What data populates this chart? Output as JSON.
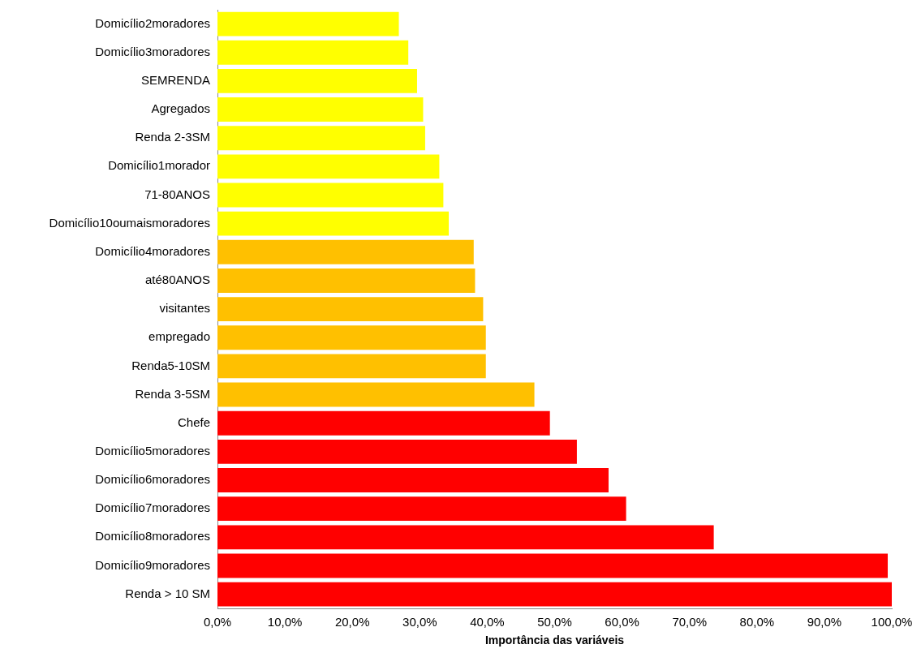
{
  "chart_data": {
    "type": "bar",
    "orientation": "horizontal",
    "xlabel": "Importância das variáveis",
    "categories": [
      "Domicílio2moradores",
      "Domicílio3moradores",
      "SEMRENDA",
      "Agregados",
      "Renda 2-3SM",
      "Domicílio1morador",
      "71-80ANOS",
      "Domicílio10oumaismoradores",
      "Domicílio4moradores",
      "até80ANOS",
      "visitantes",
      "empregado",
      "Renda5-10SM",
      "Renda 3-5SM",
      "Chefe",
      "Domicílio5moradores",
      "Domicílio6moradores",
      "Domicílio7moradores",
      "Domicílio8moradores",
      "Domicílio9moradores",
      "Renda > 10 SM"
    ],
    "values": [
      26.9,
      28.3,
      29.6,
      30.5,
      30.8,
      32.9,
      33.5,
      34.3,
      38.0,
      38.2,
      39.4,
      39.8,
      39.8,
      47.0,
      49.3,
      53.3,
      58.0,
      60.6,
      73.6,
      99.4,
      100
    ],
    "colors": [
      "#ffff00",
      "#ffff00",
      "#ffff00",
      "#ffff00",
      "#ffff00",
      "#ffff00",
      "#ffff00",
      "#ffff00",
      "#ffc000",
      "#ffc000",
      "#ffc000",
      "#ffc000",
      "#ffc000",
      "#ffc000",
      "#ff0000",
      "#ff0000",
      "#ff0000",
      "#ff0000",
      "#ff0000",
      "#ff0000",
      "#ff0000"
    ],
    "xlim": [
      0,
      100
    ],
    "xticks": [
      {
        "value": 0,
        "label": "0,0%"
      },
      {
        "value": 10,
        "label": "10,0%"
      },
      {
        "value": 20,
        "label": "20,0%"
      },
      {
        "value": 30,
        "label": "30,0%"
      },
      {
        "value": 40,
        "label": "40,0%"
      },
      {
        "value": 50,
        "label": "50,0%"
      },
      {
        "value": 60,
        "label": "60,0%"
      },
      {
        "value": 70,
        "label": "70,0%"
      },
      {
        "value": 80,
        "label": "80,0%"
      },
      {
        "value": 90,
        "label": "90,0%"
      },
      {
        "value": 100,
        "label": "100,0%"
      }
    ],
    "grid": false,
    "legend": false
  }
}
